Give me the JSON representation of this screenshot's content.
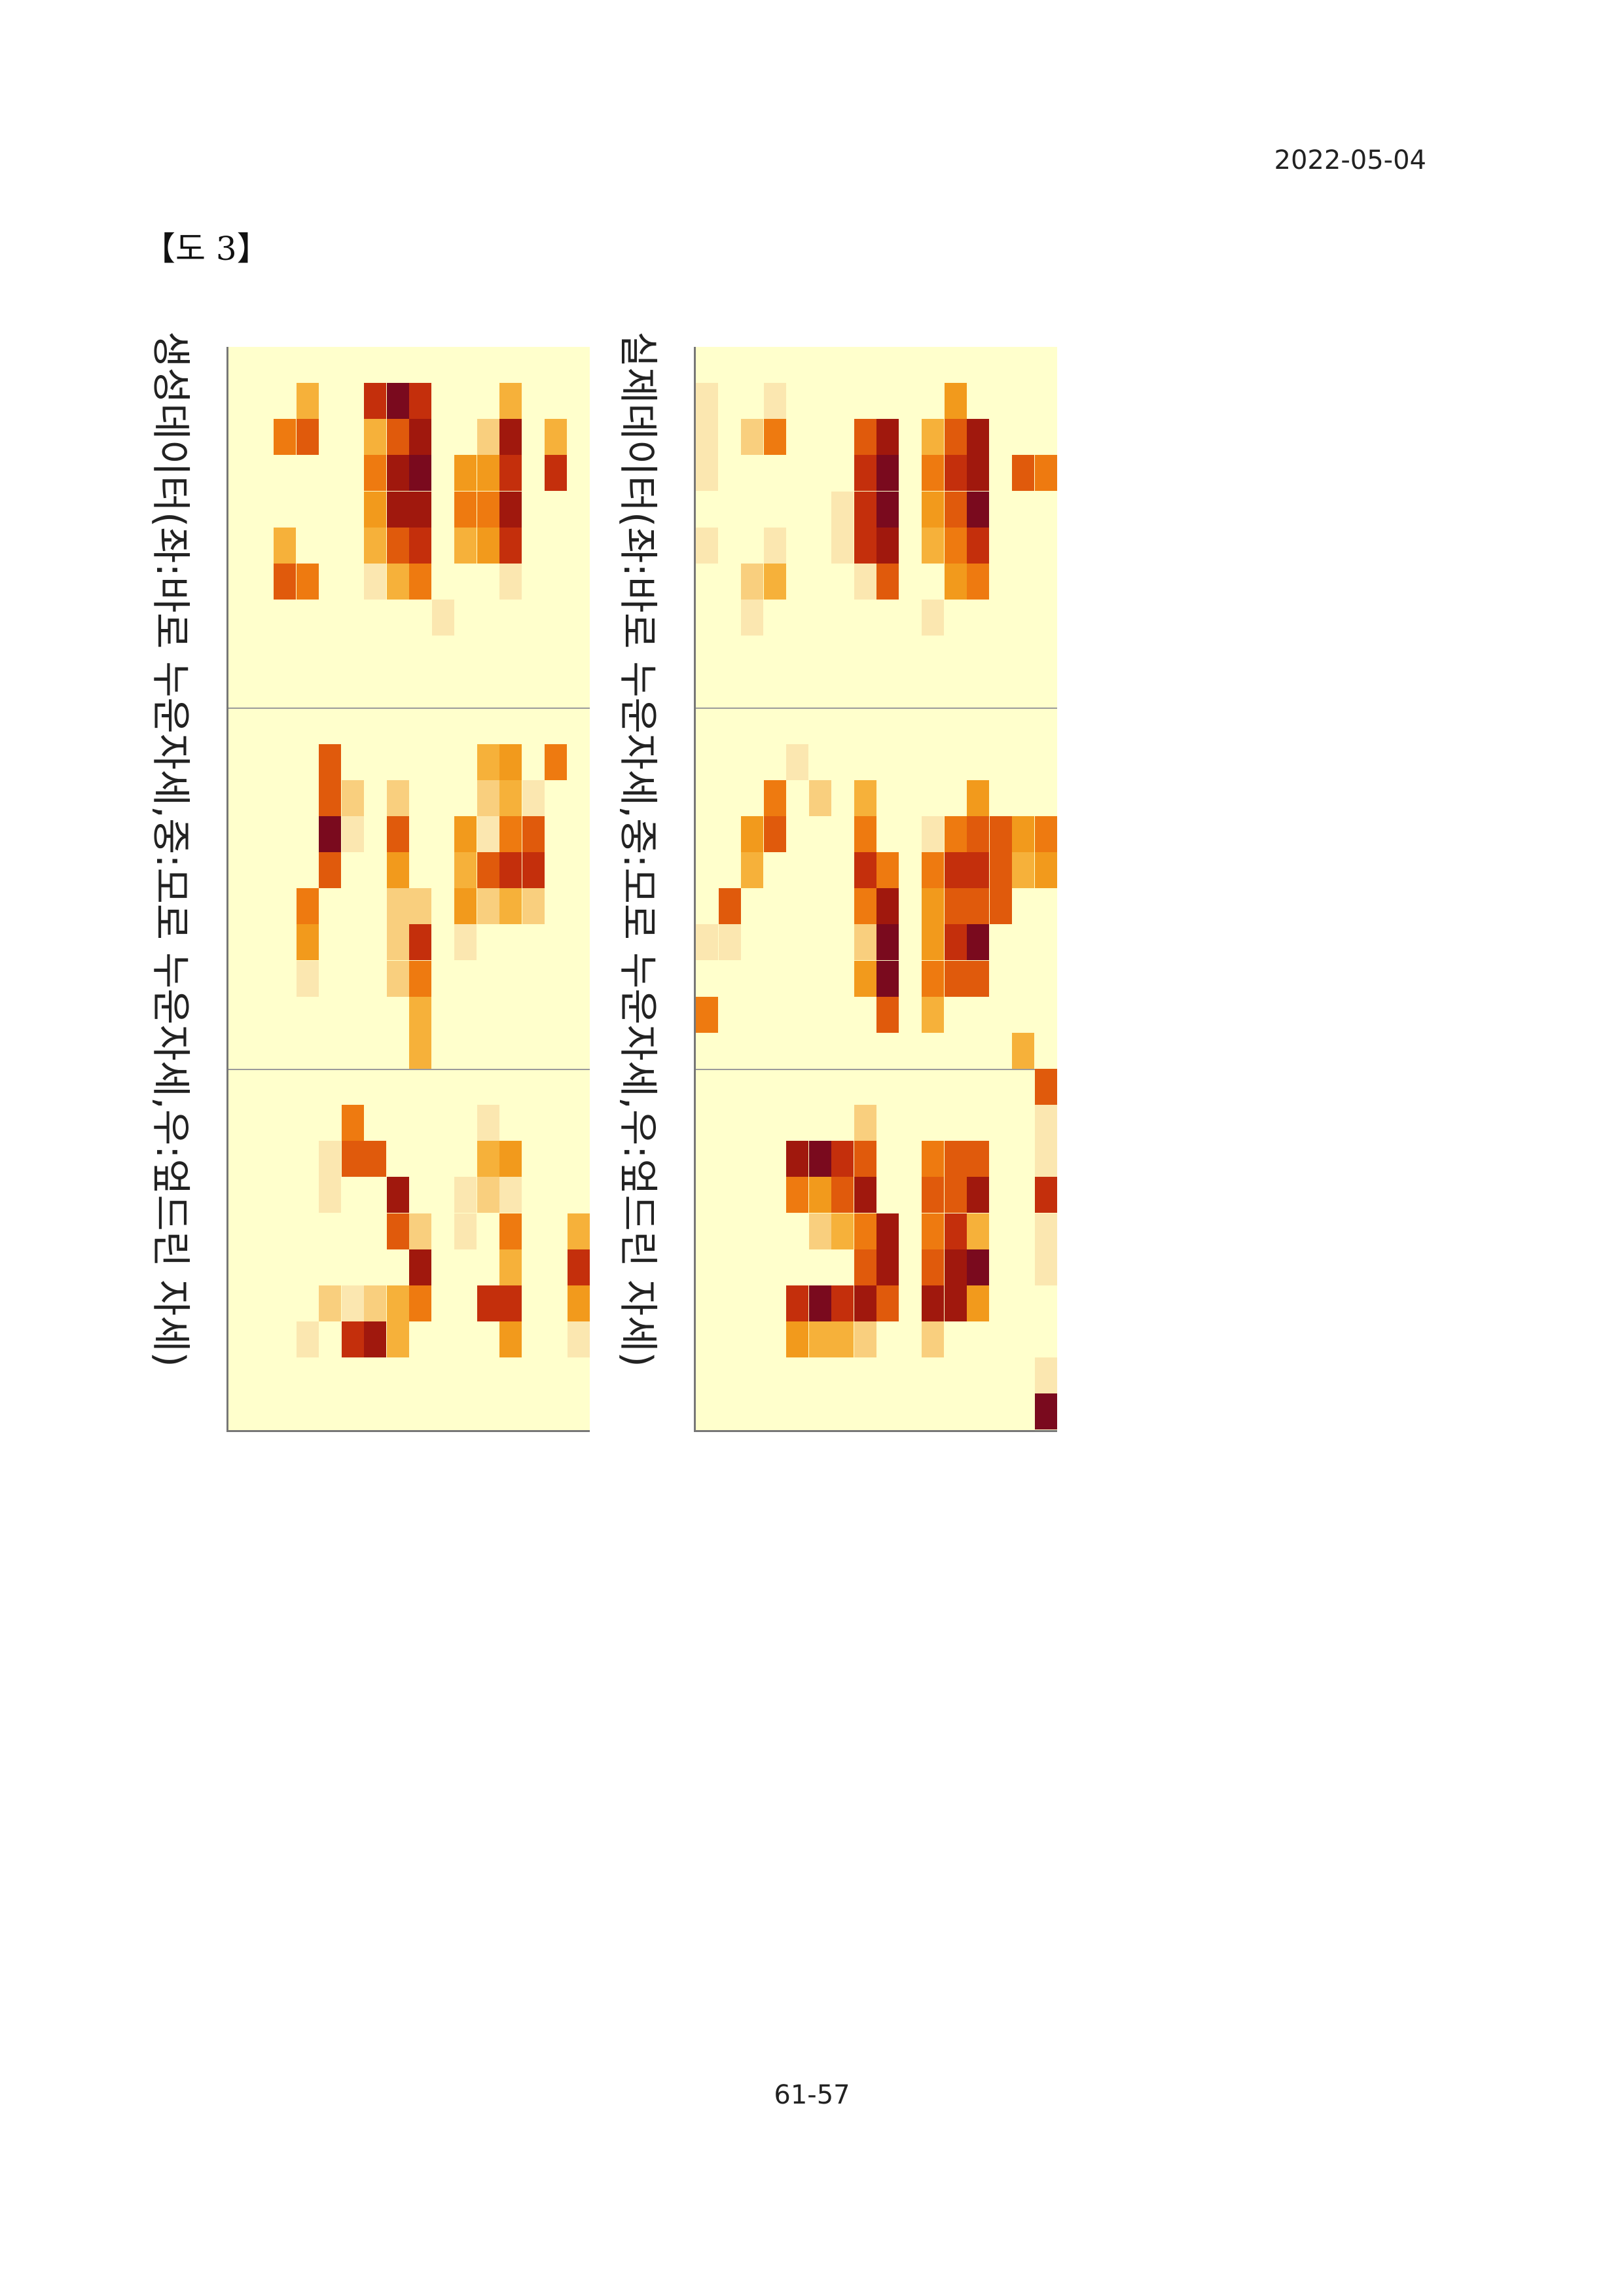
{
  "header": {
    "date": "2022-05-04",
    "figure_label": "【도 3】"
  },
  "footer": {
    "page_number": "61-57"
  },
  "figure": {
    "captions": {
      "generated": "생성데이터(좌:바로 누운자세,중:모로 누운자세,우:엎드린 자세)",
      "real": "실제데이터(좌:바로 누운자세,중:모로 누운자세,우:엎드린 자세)"
    },
    "palette": [
      "#ffffcc",
      "#fbe7b0",
      "#f9cf7e",
      "#f6b13a",
      "#f29a1c",
      "#ee7a10",
      "#e05a0c",
      "#c42f0c",
      "#a0180d",
      "#7a0a1e"
    ],
    "grid": {
      "rows": 30,
      "cols": 16,
      "panels": [
        "바로 누운자세",
        "모로 누운자세",
        "엎드린 자세"
      ]
    },
    "heatmaps": {
      "generated": [
        [
          1,
          3,
          3
        ],
        [
          2,
          2,
          5
        ],
        [
          2,
          3,
          6
        ],
        [
          1,
          6,
          2
        ],
        [
          1,
          6,
          5
        ],
        [
          1,
          6,
          7
        ],
        [
          1,
          7,
          9
        ],
        [
          1,
          8,
          7
        ],
        [
          2,
          6,
          3
        ],
        [
          2,
          7,
          6
        ],
        [
          2,
          8,
          8
        ],
        [
          3,
          6,
          5
        ],
        [
          3,
          7,
          8
        ],
        [
          3,
          8,
          9
        ],
        [
          4,
          6,
          4
        ],
        [
          4,
          7,
          8
        ],
        [
          4,
          8,
          8
        ],
        [
          5,
          6,
          3
        ],
        [
          5,
          7,
          6
        ],
        [
          5,
          8,
          7
        ],
        [
          6,
          6,
          1
        ],
        [
          6,
          7,
          3
        ],
        [
          6,
          8,
          5
        ],
        [
          5,
          2,
          3
        ],
        [
          6,
          2,
          6
        ],
        [
          6,
          3,
          5
        ],
        [
          3,
          10,
          4
        ],
        [
          4,
          10,
          5
        ],
        [
          5,
          10,
          3
        ],
        [
          2,
          11,
          2
        ],
        [
          3,
          11,
          4
        ],
        [
          4,
          11,
          5
        ],
        [
          5,
          11,
          4
        ],
        [
          1,
          12,
          3
        ],
        [
          2,
          12,
          8
        ],
        [
          3,
          12,
          7
        ],
        [
          4,
          12,
          8
        ],
        [
          5,
          12,
          7
        ],
        [
          2,
          14,
          3
        ],
        [
          3,
          14,
          7
        ],
        [
          7,
          9,
          1
        ],
        [
          6,
          12,
          1
        ],
        [
          11,
          4,
          6
        ],
        [
          12,
          4,
          6
        ],
        [
          13,
          4,
          9
        ],
        [
          14,
          4,
          6
        ],
        [
          15,
          3,
          5
        ],
        [
          16,
          3,
          4
        ],
        [
          17,
          3,
          1
        ],
        [
          12,
          5,
          2
        ],
        [
          13,
          5,
          1
        ],
        [
          12,
          7,
          2
        ],
        [
          13,
          7,
          6
        ],
        [
          14,
          7,
          4
        ],
        [
          15,
          7,
          2
        ],
        [
          16,
          7,
          2
        ],
        [
          17,
          7,
          2
        ],
        [
          15,
          8,
          2
        ],
        [
          16,
          8,
          7
        ],
        [
          17,
          8,
          5
        ],
        [
          18,
          8,
          3
        ],
        [
          19,
          8,
          3
        ],
        [
          11,
          11,
          3
        ],
        [
          11,
          12,
          4
        ],
        [
          12,
          11,
          2
        ],
        [
          12,
          12,
          3
        ],
        [
          13,
          11,
          1
        ],
        [
          13,
          12,
          5
        ],
        [
          13,
          13,
          6
        ],
        [
          14,
          11,
          6
        ],
        [
          14,
          12,
          7
        ],
        [
          15,
          11,
          2
        ],
        [
          15,
          12,
          3
        ],
        [
          13,
          10,
          4
        ],
        [
          14,
          10,
          3
        ],
        [
          15,
          10,
          4
        ],
        [
          16,
          10,
          1
        ],
        [
          11,
          14,
          5
        ],
        [
          14,
          13,
          7
        ],
        [
          12,
          13,
          1
        ],
        [
          15,
          13,
          2
        ],
        [
          21,
          5,
          5
        ],
        [
          22,
          5,
          6
        ],
        [
          23,
          4,
          1
        ],
        [
          22,
          4,
          1
        ],
        [
          22,
          6,
          6
        ],
        [
          23,
          7,
          8
        ],
        [
          24,
          7,
          6
        ],
        [
          24,
          8,
          2
        ],
        [
          25,
          8,
          8
        ],
        [
          26,
          5,
          1
        ],
        [
          26,
          6,
          2
        ],
        [
          26,
          7,
          3
        ],
        [
          26,
          8,
          5
        ],
        [
          27,
          5,
          7
        ],
        [
          27,
          6,
          8
        ],
        [
          27,
          7,
          3
        ],
        [
          26,
          4,
          2
        ],
        [
          27,
          3,
          1
        ],
        [
          21,
          11,
          1
        ],
        [
          22,
          11,
          3
        ],
        [
          22,
          12,
          4
        ],
        [
          23,
          11,
          2
        ],
        [
          23,
          12,
          1
        ],
        [
          24,
          12,
          5
        ],
        [
          25,
          12,
          3
        ],
        [
          26,
          11,
          7
        ],
        [
          26,
          12,
          7
        ],
        [
          27,
          12,
          4
        ],
        [
          23,
          10,
          1
        ],
        [
          24,
          10,
          1
        ],
        [
          25,
          15,
          7
        ],
        [
          26,
          15,
          4
        ],
        [
          24,
          15,
          3
        ],
        [
          27,
          15,
          1
        ]
      ],
      "real": [
        [
          1,
          3,
          1
        ],
        [
          1,
          0,
          1
        ],
        [
          2,
          0,
          1
        ],
        [
          2,
          2,
          2
        ],
        [
          2,
          3,
          5
        ],
        [
          3,
          0,
          1
        ],
        [
          5,
          0,
          1
        ],
        [
          5,
          3,
          1
        ],
        [
          6,
          2,
          2
        ],
        [
          6,
          3,
          3
        ],
        [
          7,
          2,
          1
        ],
        [
          6,
          7,
          1
        ],
        [
          2,
          7,
          6
        ],
        [
          2,
          8,
          8
        ],
        [
          3,
          7,
          7
        ],
        [
          3,
          8,
          9
        ],
        [
          4,
          7,
          7
        ],
        [
          4,
          8,
          9
        ],
        [
          5,
          7,
          7
        ],
        [
          5,
          8,
          8
        ],
        [
          6,
          8,
          6
        ],
        [
          4,
          6,
          1
        ],
        [
          5,
          6,
          1
        ],
        [
          1,
          11,
          4
        ],
        [
          2,
          10,
          3
        ],
        [
          2,
          11,
          6
        ],
        [
          2,
          12,
          8
        ],
        [
          3,
          10,
          5
        ],
        [
          3,
          11,
          7
        ],
        [
          3,
          12,
          8
        ],
        [
          4,
          10,
          4
        ],
        [
          4,
          11,
          6
        ],
        [
          4,
          12,
          9
        ],
        [
          5,
          10,
          3
        ],
        [
          5,
          11,
          5
        ],
        [
          5,
          12,
          7
        ],
        [
          6,
          11,
          4
        ],
        [
          6,
          12,
          5
        ],
        [
          3,
          14,
          6
        ],
        [
          3,
          15,
          5
        ],
        [
          7,
          10,
          1
        ],
        [
          11,
          4,
          1
        ],
        [
          12,
          3,
          5
        ],
        [
          13,
          3,
          6
        ],
        [
          13,
          2,
          4
        ],
        [
          14,
          2,
          3
        ],
        [
          15,
          1,
          6
        ],
        [
          16,
          1,
          1
        ],
        [
          12,
          5,
          2
        ],
        [
          16,
          0,
          1
        ],
        [
          18,
          0,
          5
        ],
        [
          12,
          7,
          3
        ],
        [
          13,
          7,
          5
        ],
        [
          14,
          7,
          7
        ],
        [
          14,
          8,
          5
        ],
        [
          15,
          7,
          5
        ],
        [
          15,
          8,
          8
        ],
        [
          16,
          7,
          2
        ],
        [
          16,
          8,
          9
        ],
        [
          17,
          7,
          4
        ],
        [
          17,
          8,
          9
        ],
        [
          18,
          8,
          6
        ],
        [
          13,
          10,
          1
        ],
        [
          13,
          11,
          5
        ],
        [
          14,
          10,
          5
        ],
        [
          14,
          11,
          7
        ],
        [
          15,
          10,
          4
        ],
        [
          15,
          11,
          6
        ],
        [
          16,
          10,
          4
        ],
        [
          16,
          11,
          7
        ],
        [
          17,
          10,
          5
        ],
        [
          17,
          11,
          6
        ],
        [
          18,
          10,
          3
        ],
        [
          12,
          12,
          4
        ],
        [
          13,
          12,
          6
        ],
        [
          14,
          12,
          7
        ],
        [
          15,
          12,
          6
        ],
        [
          16,
          12,
          9
        ],
        [
          17,
          12,
          6
        ],
        [
          13,
          13,
          6
        ],
        [
          14,
          13,
          6
        ],
        [
          15,
          13,
          6
        ],
        [
          13,
          14,
          4
        ],
        [
          13,
          15,
          5
        ],
        [
          14,
          14,
          3
        ],
        [
          14,
          15,
          4
        ],
        [
          19,
          14,
          3
        ],
        [
          20,
          15,
          6
        ],
        [
          21,
          15,
          1
        ],
        [
          22,
          15,
          1
        ],
        [
          23,
          15,
          7
        ],
        [
          24,
          15,
          1
        ],
        [
          25,
          15,
          1
        ],
        [
          28,
          15,
          1
        ],
        [
          29,
          15,
          9
        ],
        [
          22,
          4,
          8
        ],
        [
          22,
          5,
          9
        ],
        [
          22,
          6,
          7
        ],
        [
          22,
          7,
          6
        ],
        [
          23,
          4,
          5
        ],
        [
          23,
          5,
          4
        ],
        [
          23,
          6,
          6
        ],
        [
          23,
          7,
          8
        ],
        [
          24,
          5,
          2
        ],
        [
          24,
          6,
          3
        ],
        [
          24,
          7,
          5
        ],
        [
          24,
          8,
          8
        ],
        [
          25,
          7,
          6
        ],
        [
          25,
          8,
          8
        ],
        [
          26,
          4,
          7
        ],
        [
          26,
          5,
          9
        ],
        [
          26,
          6,
          7
        ],
        [
          26,
          7,
          8
        ],
        [
          26,
          8,
          6
        ],
        [
          27,
          4,
          4
        ],
        [
          27,
          5,
          3
        ],
        [
          27,
          6,
          3
        ],
        [
          27,
          7,
          2
        ],
        [
          21,
          7,
          2
        ],
        [
          22,
          10,
          5
        ],
        [
          22,
          11,
          6
        ],
        [
          23,
          10,
          6
        ],
        [
          23,
          11,
          6
        ],
        [
          24,
          10,
          5
        ],
        [
          24,
          11,
          7
        ],
        [
          25,
          10,
          6
        ],
        [
          25,
          11,
          8
        ],
        [
          26,
          10,
          8
        ],
        [
          26,
          11,
          8
        ],
        [
          27,
          10,
          2
        ],
        [
          25,
          12,
          9
        ],
        [
          24,
          12,
          3
        ],
        [
          23,
          12,
          8
        ],
        [
          26,
          12,
          4
        ],
        [
          22,
          12,
          6
        ]
      ]
    }
  }
}
